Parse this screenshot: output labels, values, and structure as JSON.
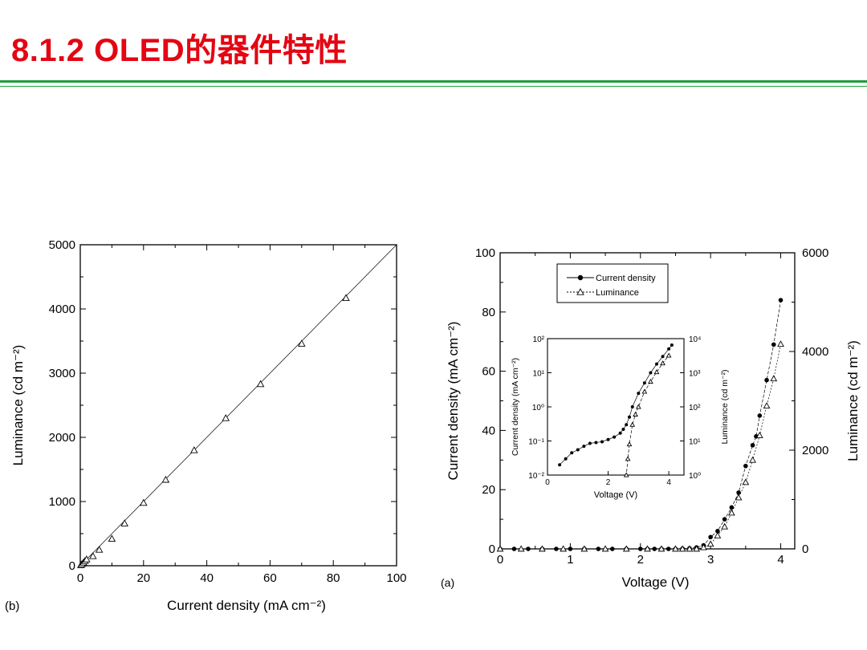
{
  "slide": {
    "title": "8.1.2  OLED的器件特性"
  },
  "chart_data": [
    {
      "panel": "(b)",
      "type": "scatter",
      "xlabel": "Current density (mA cm⁻²)",
      "ylabel": "Luminance (cd m⁻²)",
      "xlim": [
        0,
        100
      ],
      "ylim": [
        0,
        5000
      ],
      "xticks": [
        "0",
        "20",
        "40",
        "60",
        "80",
        "100"
      ],
      "yticks": [
        "0",
        "1000",
        "2000",
        "3000",
        "4000",
        "5000"
      ],
      "marker": "open-triangle",
      "grid": false,
      "x": [
        0.2,
        0.5,
        1,
        1.5,
        2,
        4,
        6,
        10,
        14,
        20,
        27,
        36,
        46,
        57,
        70,
        84
      ],
      "y": [
        10,
        25,
        50,
        75,
        100,
        150,
        250,
        420,
        660,
        980,
        1340,
        1800,
        2300,
        2830,
        3460,
        4170
      ],
      "reference_line": {
        "x": [
          0,
          100
        ],
        "y": [
          0,
          5000
        ]
      }
    },
    {
      "panel": "(a)",
      "type": "line",
      "xlabel": "Voltage (V)",
      "ylabel": "Current density (mA cm⁻²)",
      "ylabel_right": "Luminance (cd m⁻²)",
      "xlim": [
        0,
        4.2
      ],
      "ylim": [
        0,
        100
      ],
      "ylim_right": [
        0,
        6000
      ],
      "xticks": [
        "0",
        "1",
        "2",
        "3",
        "4"
      ],
      "yticks": [
        "0",
        "20",
        "40",
        "60",
        "80",
        "100"
      ],
      "yticks_right": [
        "0",
        "2000",
        "4000",
        "6000"
      ],
      "legend_position": "top-center",
      "series": [
        {
          "name": "Current density",
          "axis": "left",
          "marker": "filled-circle",
          "x": [
            0,
            0.2,
            0.4,
            0.6,
            0.8,
            1.0,
            1.2,
            1.4,
            1.6,
            1.8,
            2.0,
            2.1,
            2.2,
            2.3,
            2.4,
            2.5,
            2.6,
            2.7,
            2.8,
            2.9,
            3.0,
            3.1,
            3.2,
            3.3,
            3.4,
            3.5,
            3.6,
            3.65,
            3.7,
            3.8,
            3.9,
            4.0
          ],
          "y": [
            0,
            0,
            0,
            0,
            0,
            0,
            0,
            0,
            0,
            0,
            0,
            0,
            0,
            0,
            0,
            0,
            0.1,
            0.2,
            0.5,
            1.2,
            4,
            6,
            10,
            14,
            19,
            28,
            35,
            38,
            45,
            57,
            69,
            84
          ]
        },
        {
          "name": "Luminance",
          "axis": "right",
          "marker": "open-triangle",
          "x": [
            0,
            0.3,
            0.6,
            0.9,
            1.2,
            1.5,
            1.8,
            2.1,
            2.3,
            2.5,
            2.6,
            2.7,
            2.8,
            2.9,
            3.0,
            3.1,
            3.2,
            3.3,
            3.4,
            3.5,
            3.6,
            3.7,
            3.8,
            3.9,
            4.0
          ],
          "y": [
            0,
            0,
            0,
            0,
            0,
            0,
            0,
            0,
            0,
            0,
            0,
            0,
            0,
            30,
            100,
            270,
            450,
            730,
            1040,
            1350,
            1800,
            2300,
            2900,
            3450,
            4150
          ]
        }
      ],
      "inset": {
        "type": "line",
        "xlabel": "Voltage (V)",
        "ylabel": "Current density (mA cm⁻²)",
        "ylabel_right": "Luminance (cd m⁻²)",
        "xlim": [
          0,
          4.5
        ],
        "xticks": [
          "0",
          "2",
          "4"
        ],
        "yticks": [
          "10⁻²",
          "10⁻¹",
          "10⁰",
          "10¹",
          "10²"
        ],
        "yticks_right": [
          "10⁰",
          "10¹",
          "10²",
          "10³",
          "10⁴"
        ],
        "y_scale": "log",
        "series": [
          {
            "name": "Current density",
            "axis": "left",
            "marker": "filled-circle",
            "x": [
              0.4,
              0.6,
              0.8,
              1.0,
              1.2,
              1.4,
              1.6,
              1.8,
              2.0,
              2.2,
              2.4,
              2.5,
              2.6,
              2.7,
              2.8,
              3.0,
              3.2,
              3.4,
              3.6,
              3.8,
              4.0,
              4.1
            ],
            "y": [
              0.02,
              0.03,
              0.045,
              0.055,
              0.07,
              0.085,
              0.09,
              0.095,
              0.11,
              0.13,
              0.17,
              0.22,
              0.3,
              0.5,
              1.0,
              2.5,
              5,
              10,
              18,
              30,
              50,
              65
            ]
          },
          {
            "name": "Luminance",
            "axis": "right",
            "marker": "open-triangle",
            "x": [
              2.6,
              2.65,
              2.7,
              2.8,
              2.9,
              3.0,
              3.2,
              3.4,
              3.6,
              3.8,
              4.0
            ],
            "y": [
              1,
              3,
              8,
              30,
              60,
              100,
              280,
              550,
              1050,
              1900,
              3200
            ]
          }
        ]
      }
    }
  ]
}
